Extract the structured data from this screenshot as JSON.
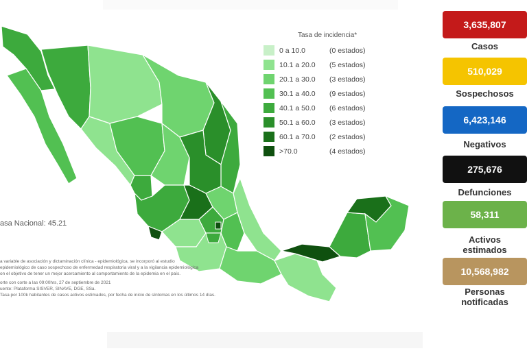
{
  "legend": {
    "title": "Tasa de incidencia*",
    "rows": [
      {
        "range": "0   a  10.0",
        "count": "(0 estados)",
        "color": "#c8f0c8"
      },
      {
        "range": "10.1 a  20.0",
        "count": "(5 estados)",
        "color": "#8fe38f"
      },
      {
        "range": "20.1 a  30.0",
        "count": "(3 estados)",
        "color": "#6fd46f"
      },
      {
        "range": "30.1 a  40.0",
        "count": "(9 estados)",
        "color": "#52c052"
      },
      {
        "range": "40.1 a  50.0",
        "count": "(6 estados)",
        "color": "#3daa3d"
      },
      {
        "range": "50.1 a  60.0",
        "count": "(3 estados)",
        "color": "#2a8f2a"
      },
      {
        "range": "60.1 a  70.0",
        "count": "(2 estados)",
        "color": "#1a701a"
      },
      {
        "range": ">70.0",
        "count": "(4 estados)",
        "color": "#0f500f"
      }
    ]
  },
  "tasa_nacional": "asa Nacional: 45.21",
  "notes": [
    "a variable de asociación y dictaminación clínica - epidemiológica, se incorporó al estudio",
    "epidemiológico de caso sospechoso de enfermedad respiratoria viral y a la vigilancia epidemiológica",
    "on el objetivo de tener un mejor acercamiento al comportamiento de la epidemia en el país.",
    "",
    "orte con corte a las 09:00hrs, 27 de septiembre de 2021",
    "uente: Plataforma SISVER, SINAVE, DGE, SSa.",
    "Tasa por 100k habitantes de casos activos estimados, por fecha de inicio de síntomas en los últimos 14 días."
  ],
  "stats": [
    {
      "value": "3,635,807",
      "label": "Casos",
      "color": "#c41a1a"
    },
    {
      "value": "510,029",
      "label": "Sospechosos",
      "color": "#f5c400"
    },
    {
      "value": "6,423,146",
      "label": "Negativos",
      "color": "#1467c4"
    },
    {
      "value": "275,676",
      "label": "Defunciones",
      "color": "#111111"
    },
    {
      "value": "58,311",
      "label": "Activos estimados",
      "color": "#6cb24a"
    },
    {
      "value": "10,568,982",
      "label": "Personas notificadas",
      "color": "#b8955f"
    }
  ]
}
